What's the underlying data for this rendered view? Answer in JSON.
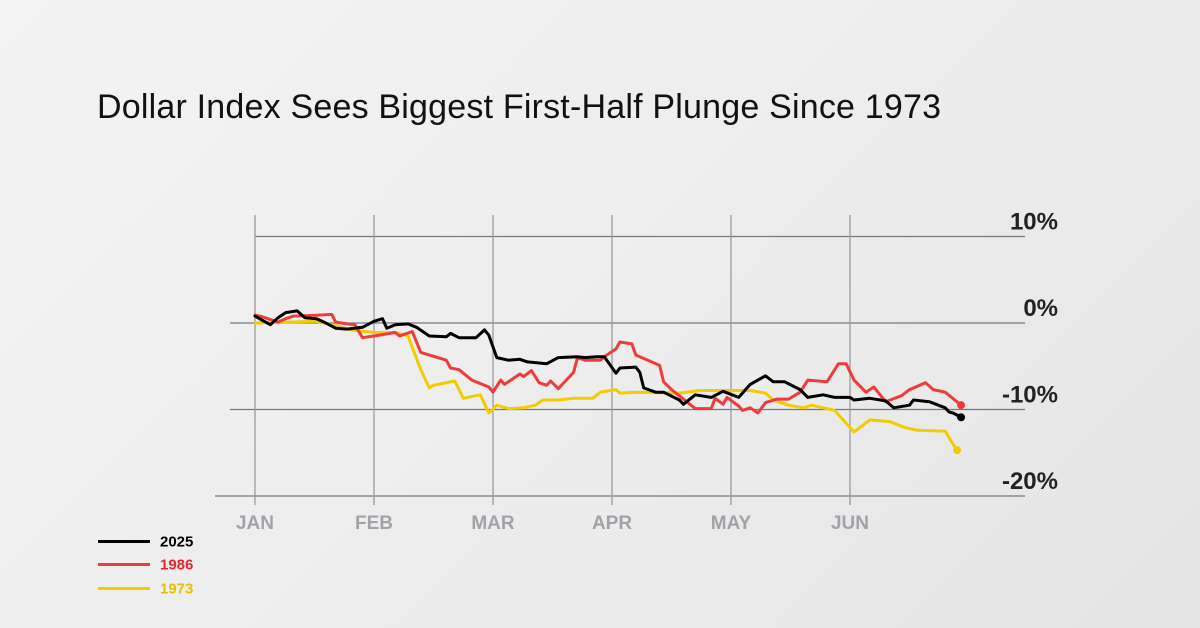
{
  "chart_data": {
    "type": "line",
    "title": "Dollar Index Sees Biggest First-Half Plunge Since 1973",
    "xlabel": "",
    "ylabel": "",
    "x_ticks": [
      "JAN",
      "FEB",
      "MAR",
      "APR",
      "MAY",
      "JUN"
    ],
    "y_ticks": [
      "10%",
      "0%",
      "-10%",
      "-20%"
    ],
    "y_tick_values": [
      10,
      0,
      -10,
      -20
    ],
    "ylim": [
      -20,
      10
    ],
    "grid": true,
    "legend_position": "bottom-left",
    "series": [
      {
        "name": "2025",
        "color": "#000000",
        "points": [
          [
            "01-01",
            0.8
          ],
          [
            "01-03",
            0.3
          ],
          [
            "01-05",
            -0.2
          ],
          [
            "01-07",
            0.6
          ],
          [
            "01-09",
            1.2
          ],
          [
            "01-12",
            1.4
          ],
          [
            "01-14",
            0.6
          ],
          [
            "01-17",
            0.5
          ],
          [
            "01-19",
            0.1
          ],
          [
            "01-22",
            -0.6
          ],
          [
            "01-25",
            -0.7
          ],
          [
            "01-29",
            -0.5
          ],
          [
            "02-01",
            0.2
          ],
          [
            "02-03",
            0.5
          ],
          [
            "02-04",
            -0.6
          ],
          [
            "02-06",
            -0.2
          ],
          [
            "02-09",
            -0.1
          ],
          [
            "02-11",
            -0.5
          ],
          [
            "02-14",
            -1.5
          ],
          [
            "02-18",
            -1.6
          ],
          [
            "02-19",
            -1.2
          ],
          [
            "02-21",
            -1.7
          ],
          [
            "02-25",
            -1.7
          ],
          [
            "02-27",
            -0.8
          ],
          [
            "02-28",
            -1.4
          ],
          [
            "03-02",
            -4.0
          ],
          [
            "03-05",
            -4.3
          ],
          [
            "03-08",
            -4.2
          ],
          [
            "03-10",
            -4.5
          ],
          [
            "03-15",
            -4.7
          ],
          [
            "03-18",
            -4.0
          ],
          [
            "03-23",
            -3.9
          ],
          [
            "03-25",
            -4.0
          ],
          [
            "03-28",
            -3.9
          ],
          [
            "03-30",
            -3.9
          ],
          [
            "04-02",
            -5.8
          ],
          [
            "04-03",
            -5.2
          ],
          [
            "04-07",
            -5.1
          ],
          [
            "04-08",
            -5.7
          ],
          [
            "04-09",
            -7.5
          ],
          [
            "04-12",
            -8.0
          ],
          [
            "04-14",
            -8.0
          ],
          [
            "04-18",
            -8.9
          ],
          [
            "04-19",
            -9.4
          ],
          [
            "04-22",
            -8.3
          ],
          [
            "04-26",
            -8.6
          ],
          [
            "04-29",
            -7.9
          ],
          [
            "05-03",
            -8.6
          ],
          [
            "05-06",
            -7.1
          ],
          [
            "05-08",
            -6.6
          ],
          [
            "05-10",
            -6.1
          ],
          [
            "05-12",
            -6.8
          ],
          [
            "05-15",
            -6.8
          ],
          [
            "05-19",
            -7.7
          ],
          [
            "05-21",
            -8.6
          ],
          [
            "05-25",
            -8.3
          ],
          [
            "05-26",
            -8.4
          ],
          [
            "05-28",
            -8.6
          ],
          [
            "06-01",
            -8.6
          ],
          [
            "06-02",
            -8.9
          ],
          [
            "06-06",
            -8.7
          ],
          [
            "06-10",
            -9.0
          ],
          [
            "06-12",
            -9.8
          ],
          [
            "06-16",
            -9.5
          ],
          [
            "06-17",
            -8.9
          ],
          [
            "06-21",
            -9.1
          ],
          [
            "06-25",
            -9.8
          ],
          [
            "06-26",
            -10.3
          ],
          [
            "06-27",
            -10.4
          ],
          [
            "06-29",
            -10.9
          ]
        ]
      },
      {
        "name": "1986",
        "color": "#ef3b3b",
        "points": [
          [
            "01-01",
            0.9
          ],
          [
            "01-03",
            0.7
          ],
          [
            "01-07",
            0.1
          ],
          [
            "01-09",
            0.5
          ],
          [
            "01-11",
            0.8
          ],
          [
            "01-17",
            0.9
          ],
          [
            "01-21",
            1.0
          ],
          [
            "01-22",
            0.1
          ],
          [
            "01-25",
            -0.1
          ],
          [
            "01-27",
            -0.2
          ],
          [
            "01-29",
            -1.7
          ],
          [
            "02-01",
            -1.5
          ],
          [
            "02-06",
            -1.1
          ],
          [
            "02-07",
            -1.5
          ],
          [
            "02-10",
            -1.0
          ],
          [
            "02-12",
            -3.4
          ],
          [
            "02-18",
            -4.3
          ],
          [
            "02-19",
            -5.2
          ],
          [
            "02-21",
            -5.4
          ],
          [
            "02-24",
            -6.6
          ],
          [
            "02-28",
            -7.4
          ],
          [
            "03-01",
            -8.0
          ],
          [
            "03-03",
            -6.6
          ],
          [
            "03-04",
            -7.1
          ],
          [
            "03-08",
            -5.9
          ],
          [
            "03-09",
            -6.2
          ],
          [
            "03-11",
            -5.5
          ],
          [
            "03-12",
            -6.2
          ],
          [
            "03-13",
            -6.9
          ],
          [
            "03-15",
            -7.2
          ],
          [
            "03-16",
            -6.7
          ],
          [
            "03-18",
            -7.6
          ],
          [
            "03-22",
            -5.7
          ],
          [
            "03-23",
            -4.0
          ],
          [
            "03-25",
            -4.3
          ],
          [
            "03-29",
            -4.3
          ],
          [
            "03-30",
            -3.9
          ],
          [
            "04-02",
            -3.0
          ],
          [
            "04-03",
            -2.2
          ],
          [
            "04-06",
            -2.4
          ],
          [
            "04-07",
            -3.7
          ],
          [
            "04-13",
            -4.9
          ],
          [
            "04-14",
            -6.8
          ],
          [
            "04-16",
            -7.7
          ],
          [
            "04-19",
            -8.8
          ],
          [
            "04-22",
            -9.9
          ],
          [
            "04-26",
            -9.9
          ],
          [
            "04-27",
            -8.7
          ],
          [
            "04-29",
            -9.4
          ],
          [
            "04-30",
            -8.6
          ],
          [
            "05-03",
            -9.6
          ],
          [
            "05-04",
            -10.1
          ],
          [
            "05-06",
            -9.8
          ],
          [
            "05-08",
            -10.4
          ],
          [
            "05-10",
            -9.2
          ],
          [
            "05-13",
            -8.8
          ],
          [
            "05-16",
            -8.8
          ],
          [
            "05-19",
            -8.0
          ],
          [
            "05-21",
            -6.6
          ],
          [
            "05-26",
            -6.8
          ],
          [
            "05-29",
            -4.7
          ],
          [
            "05-31",
            -4.7
          ],
          [
            "06-02",
            -6.6
          ],
          [
            "06-05",
            -8.0
          ],
          [
            "06-07",
            -7.4
          ],
          [
            "06-10",
            -9.1
          ],
          [
            "06-14",
            -8.4
          ],
          [
            "06-16",
            -7.7
          ],
          [
            "06-20",
            -6.9
          ],
          [
            "06-22",
            -7.7
          ],
          [
            "06-25",
            -8.0
          ],
          [
            "06-29",
            -9.5
          ]
        ]
      },
      {
        "name": "1973",
        "color": "#f2cc00",
        "points": [
          [
            "01-01",
            0.0
          ],
          [
            "01-10",
            0.1
          ],
          [
            "01-17",
            0.2
          ],
          [
            "01-22",
            -0.3
          ],
          [
            "01-26",
            -0.8
          ],
          [
            "02-01",
            -1.1
          ],
          [
            "02-06",
            -1.1
          ],
          [
            "02-09",
            -1.5
          ],
          [
            "02-12",
            -5.4
          ],
          [
            "02-14",
            -7.5
          ],
          [
            "02-15",
            -7.2
          ],
          [
            "02-20",
            -6.7
          ],
          [
            "02-22",
            -8.7
          ],
          [
            "02-26",
            -8.3
          ],
          [
            "02-28",
            -10.4
          ],
          [
            "03-02",
            -9.5
          ],
          [
            "03-05",
            -9.9
          ],
          [
            "03-09",
            -9.8
          ],
          [
            "03-12",
            -9.5
          ],
          [
            "03-14",
            -8.9
          ],
          [
            "03-18",
            -8.9
          ],
          [
            "03-22",
            -8.7
          ],
          [
            "03-27",
            -8.7
          ],
          [
            "03-29",
            -8.0
          ],
          [
            "04-02",
            -7.7
          ],
          [
            "04-03",
            -8.1
          ],
          [
            "04-08",
            -8.0
          ],
          [
            "04-18",
            -8.1
          ],
          [
            "04-23",
            -7.8
          ],
          [
            "05-06",
            -7.8
          ],
          [
            "05-10",
            -8.1
          ],
          [
            "05-12",
            -8.9
          ],
          [
            "05-16",
            -9.5
          ],
          [
            "05-20",
            -9.8
          ],
          [
            "05-22",
            -9.5
          ],
          [
            "05-28",
            -10.1
          ],
          [
            "06-02",
            -12.6
          ],
          [
            "06-06",
            -11.2
          ],
          [
            "06-11",
            -11.4
          ],
          [
            "06-15",
            -12.1
          ],
          [
            "06-18",
            -12.4
          ],
          [
            "06-25",
            -12.5
          ],
          [
            "06-27",
            -14.0
          ],
          [
            "06-28",
            -14.7
          ]
        ]
      }
    ]
  }
}
